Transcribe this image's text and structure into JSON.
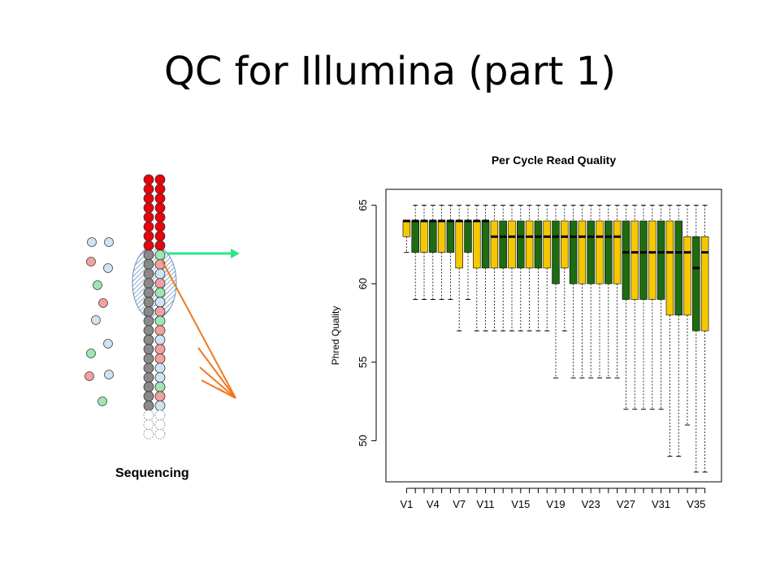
{
  "slide": {
    "title": "QC for Illumina (part 1)",
    "diagram_label": "Sequencing"
  },
  "colors": {
    "box_odd": "#f5c800",
    "box_even": "#1f6b0f",
    "strand_red": "#e8040a",
    "strand_grey": "#8a8a8a",
    "arrow_green": "#2ee58a",
    "arrow_orange": "#f07820"
  },
  "chart_data": {
    "type": "boxplot",
    "title": "Per Cycle Read Quality",
    "ylabel": "Phred Quality",
    "xlabel": "",
    "ylim": [
      48,
      65.5
    ],
    "yticks": [
      50,
      55,
      60,
      65
    ],
    "xtick_labels": [
      "V1",
      "V4",
      "V7",
      "V11",
      "V15",
      "V19",
      "V23",
      "V27",
      "V31",
      "V35"
    ],
    "xtick_positions": [
      1,
      4,
      7,
      10,
      14,
      18,
      22,
      26,
      30,
      34
    ],
    "boxes": [
      {
        "q1": 63,
        "median": 64,
        "q3": 64,
        "wmin": 62,
        "wmax": 64
      },
      {
        "q1": 62,
        "median": 64,
        "q3": 64,
        "wmin": 59,
        "wmax": 65
      },
      {
        "q1": 62,
        "median": 64,
        "q3": 64,
        "wmin": 59,
        "wmax": 65
      },
      {
        "q1": 62,
        "median": 64,
        "q3": 64,
        "wmin": 59,
        "wmax": 65
      },
      {
        "q1": 62,
        "median": 64,
        "q3": 64,
        "wmin": 59,
        "wmax": 65
      },
      {
        "q1": 62,
        "median": 64,
        "q3": 64,
        "wmin": 59,
        "wmax": 65
      },
      {
        "q1": 61,
        "median": 64,
        "q3": 64,
        "wmin": 57,
        "wmax": 65
      },
      {
        "q1": 62,
        "median": 64,
        "q3": 64,
        "wmin": 59,
        "wmax": 65
      },
      {
        "q1": 61,
        "median": 64,
        "q3": 64,
        "wmin": 57,
        "wmax": 65
      },
      {
        "q1": 61,
        "median": 64,
        "q3": 64,
        "wmin": 57,
        "wmax": 65
      },
      {
        "q1": 61,
        "median": 63,
        "q3": 64,
        "wmin": 57,
        "wmax": 65
      },
      {
        "q1": 61,
        "median": 63,
        "q3": 64,
        "wmin": 57,
        "wmax": 65
      },
      {
        "q1": 61,
        "median": 63,
        "q3": 64,
        "wmin": 57,
        "wmax": 65
      },
      {
        "q1": 61,
        "median": 63,
        "q3": 64,
        "wmin": 57,
        "wmax": 65
      },
      {
        "q1": 61,
        "median": 63,
        "q3": 64,
        "wmin": 57,
        "wmax": 65
      },
      {
        "q1": 61,
        "median": 63,
        "q3": 64,
        "wmin": 57,
        "wmax": 65
      },
      {
        "q1": 61,
        "median": 63,
        "q3": 64,
        "wmin": 57,
        "wmax": 65
      },
      {
        "q1": 60,
        "median": 63,
        "q3": 64,
        "wmin": 54,
        "wmax": 65
      },
      {
        "q1": 61,
        "median": 63,
        "q3": 64,
        "wmin": 57,
        "wmax": 65
      },
      {
        "q1": 60,
        "median": 63,
        "q3": 64,
        "wmin": 54,
        "wmax": 65
      },
      {
        "q1": 60,
        "median": 63,
        "q3": 64,
        "wmin": 54,
        "wmax": 65
      },
      {
        "q1": 60,
        "median": 63,
        "q3": 64,
        "wmin": 54,
        "wmax": 65
      },
      {
        "q1": 60,
        "median": 63,
        "q3": 64,
        "wmin": 54,
        "wmax": 65
      },
      {
        "q1": 60,
        "median": 63,
        "q3": 64,
        "wmin": 54,
        "wmax": 65
      },
      {
        "q1": 60,
        "median": 63,
        "q3": 64,
        "wmin": 54,
        "wmax": 65
      },
      {
        "q1": 59,
        "median": 62,
        "q3": 64,
        "wmin": 52,
        "wmax": 65
      },
      {
        "q1": 59,
        "median": 62,
        "q3": 64,
        "wmin": 52,
        "wmax": 65
      },
      {
        "q1": 59,
        "median": 62,
        "q3": 64,
        "wmin": 52,
        "wmax": 65
      },
      {
        "q1": 59,
        "median": 62,
        "q3": 64,
        "wmin": 52,
        "wmax": 65
      },
      {
        "q1": 59,
        "median": 62,
        "q3": 64,
        "wmin": 52,
        "wmax": 65
      },
      {
        "q1": 58,
        "median": 62,
        "q3": 64,
        "wmin": 49,
        "wmax": 65
      },
      {
        "q1": 58,
        "median": 62,
        "q3": 64,
        "wmin": 49,
        "wmax": 65
      },
      {
        "q1": 58,
        "median": 62,
        "q3": 63,
        "wmin": 51,
        "wmax": 65
      },
      {
        "q1": 57,
        "median": 61,
        "q3": 63,
        "wmin": 48,
        "wmax": 65
      },
      {
        "q1": 57,
        "median": 62,
        "q3": 63,
        "wmin": 48,
        "wmax": 65
      }
    ]
  }
}
